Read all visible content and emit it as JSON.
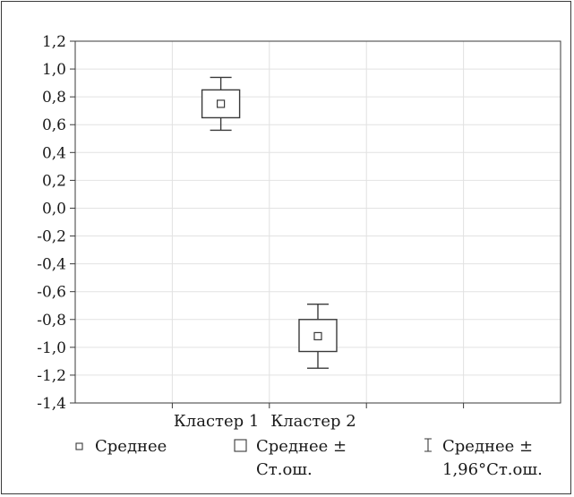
{
  "chart_data": {
    "type": "box",
    "categories": [
      "Кластер 1",
      "Кластер 2"
    ],
    "series": [
      {
        "category": "Кластер 1",
        "mean": 0.75,
        "se_low": 0.65,
        "se_high": 0.85,
        "ci_low": 0.56,
        "ci_high": 0.94
      },
      {
        "category": "Кластер 2",
        "mean": -0.92,
        "se_low": -1.03,
        "se_high": -0.8,
        "ci_low": -1.15,
        "ci_high": -0.69
      }
    ],
    "y_ticks": [
      1.2,
      1.0,
      0.8,
      0.6,
      0.4,
      0.2,
      0.0,
      -0.2,
      -0.4,
      -0.6,
      -0.8,
      -1.0,
      -1.2,
      -1.4
    ],
    "y_tick_labels": [
      "1,2",
      "1,0",
      "0,8",
      "0,6",
      "0,4",
      "0,2",
      "0,0",
      "-0,2",
      "-0,4",
      "-0,6",
      "-0,8",
      "-1,0",
      "-1,2",
      "-1,4"
    ],
    "ylim": [
      -1.4,
      1.2
    ],
    "grid": true,
    "legend_position": "bottom",
    "colors": {
      "line": "#3a3a3a",
      "grid": "#e2e2e2",
      "box_fill": "#ffffff"
    },
    "legend": [
      {
        "icon": "small-square-icon",
        "lines": [
          "Среднее"
        ]
      },
      {
        "icon": "square-icon",
        "lines": [
          "Среднее ±",
          "Ст.ош."
        ]
      },
      {
        "icon": "whisker-icon",
        "lines": [
          "Среднее ±",
          "1,96°Ст.ош."
        ]
      }
    ]
  }
}
